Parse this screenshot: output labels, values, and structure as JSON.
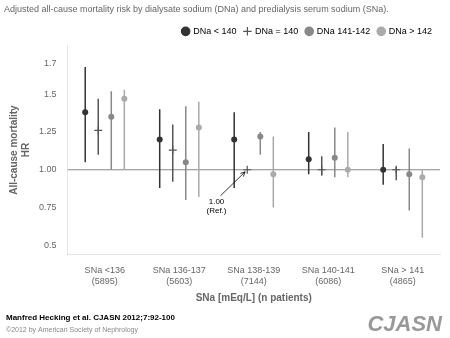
{
  "chart_data": {
    "type": "errorbar",
    "title": "Adjusted all-cause mortality risk by dialysate sodium (DNa) and predialysis serum sodium (SNa).",
    "y_label": [
      "All-cause mortality",
      "HR"
    ],
    "x_label": "SNa [mEq/L] (n patients)",
    "categories": [
      "SNa <136\n(5895)",
      "SNa 136-137\n(5603)",
      "SNa 138-139\n(7144)",
      "SNa 140-141\n(6086)",
      "SNa > 141\n(4865)"
    ],
    "ylim": [
      0.44,
      1.82
    ],
    "yticks": [
      0.5,
      0.75,
      {
        "value": 1.0,
        "label": "1.00"
      },
      1.25,
      1.5,
      1.7
    ],
    "grid": false,
    "legend": "top",
    "reference_line": 1.0,
    "annotations": [
      {
        "text": "1.00\n(Ref.)",
        "x": "SNa 138-139\n(7144)",
        "series": "DNa = 140",
        "y": 1.0
      }
    ],
    "footnotes": [
      "Manfred Hecking et al. CJASN 2012;7:92-100",
      "CJASN",
      "©2012 by American Society of Nephrology"
    ],
    "series": [
      {
        "name": "DNa < 140",
        "color": "#333333",
        "marker": "circle",
        "values": [
          1.38,
          1.2,
          1.2,
          1.07,
          1.0
        ],
        "ci_low": [
          1.05,
          0.88,
          0.88,
          0.97,
          0.9
        ],
        "ci_high": [
          1.68,
          1.4,
          1.38,
          1.25,
          1.17
        ]
      },
      {
        "name": "DNa = 140",
        "color": "#555555",
        "marker": "cross",
        "values": [
          1.26,
          1.13,
          1.0,
          1.0,
          1.0
        ],
        "ci_low": [
          1.1,
          0.92,
          1.0,
          0.96,
          0.93
        ],
        "ci_high": [
          1.47,
          1.3,
          1.0,
          1.09,
          1.02
        ]
      },
      {
        "name": "DNa 141-142",
        "color": "#888888",
        "marker": "circle",
        "values": [
          1.35,
          1.05,
          1.22,
          1.08,
          0.97
        ],
        "ci_low": [
          1.0,
          0.8,
          1.1,
          0.95,
          0.73
        ],
        "ci_high": [
          1.52,
          1.42,
          1.25,
          1.28,
          1.14
        ]
      },
      {
        "name": "DNa > 142",
        "color": "#aaaaaa",
        "marker": "circle",
        "values": [
          1.47,
          1.28,
          0.97,
          1.0,
          0.95
        ],
        "ci_low": [
          1.0,
          0.82,
          0.75,
          0.95,
          0.55
        ],
        "ci_high": [
          1.53,
          1.45,
          1.22,
          1.25,
          1.0
        ]
      }
    ]
  }
}
